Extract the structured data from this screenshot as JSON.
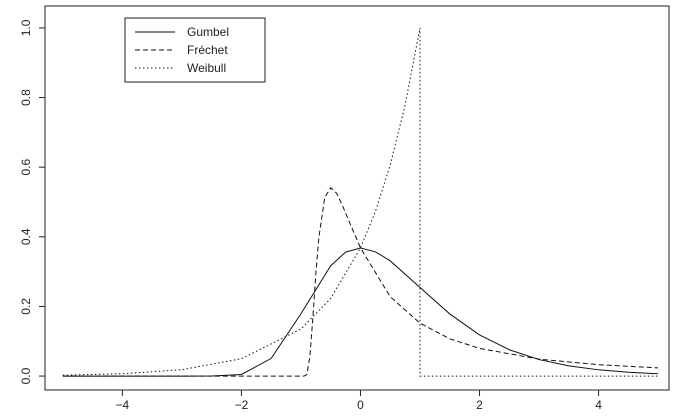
{
  "chart_data": {
    "type": "line",
    "xlim": [
      -5.3,
      5.2
    ],
    "ylim": [
      -0.04,
      1.04
    ],
    "xticks": [
      {
        "value": -4,
        "label": "−4"
      },
      {
        "value": -2,
        "label": "−2"
      },
      0,
      2,
      4
    ],
    "yticks": [
      {
        "value": 0,
        "label": "0.0"
      },
      {
        "value": 0.2,
        "label": "0.2"
      },
      {
        "value": 0.4,
        "label": "0.4"
      },
      {
        "value": 0.6,
        "label": "0.6"
      },
      {
        "value": 0.8,
        "label": "0.8"
      },
      {
        "value": 1,
        "label": "1.0"
      }
    ],
    "legend": "top-left",
    "series": [
      {
        "name": "Gumbel",
        "color": "#111111",
        "dash": "solid",
        "x": [
          -5,
          -4,
          -3,
          -2.5,
          -2,
          -1.5,
          -1,
          -0.5,
          -0.25,
          0,
          0.25,
          0.5,
          1,
          1.5,
          2,
          2.5,
          3,
          3.5,
          4,
          4.5,
          5
        ],
        "values": [
          0,
          0,
          0,
          0.0001,
          0.0046,
          0.0508,
          0.179,
          0.317,
          0.356,
          0.368,
          0.357,
          0.331,
          0.2546,
          0.1785,
          0.1182,
          0.0756,
          0.0474,
          0.0293,
          0.018,
          0.011,
          0.0067
        ]
      },
      {
        "name": "Fréchet",
        "color": "#111111",
        "dash": "dashed",
        "x": [
          -5,
          -1,
          -0.95,
          -0.9,
          -0.85,
          -0.8,
          -0.75,
          -0.7,
          -0.6,
          -0.5,
          -0.4,
          -0.3,
          -0.2,
          0,
          0.5,
          1,
          1.5,
          2,
          3,
          4,
          5
        ],
        "values": [
          0,
          0,
          0,
          0.0045,
          0.0565,
          0.168,
          0.293,
          0.397,
          0.513,
          0.541,
          0.525,
          0.489,
          0.448,
          0.368,
          0.228,
          0.152,
          0.107,
          0.0796,
          0.0487,
          0.0327,
          0.0235
        ]
      },
      {
        "name": "Weibull",
        "color": "#111111",
        "dash": "dotted",
        "x": [
          -5,
          -4,
          -3,
          -2,
          -1,
          -0.5,
          0,
          0.25,
          0.5,
          0.75,
          1,
          1,
          5
        ],
        "values": [
          0.0025,
          0.0067,
          0.0183,
          0.0498,
          0.1353,
          0.2231,
          0.3679,
          0.4724,
          0.6065,
          0.7788,
          1,
          0,
          0
        ]
      }
    ]
  }
}
